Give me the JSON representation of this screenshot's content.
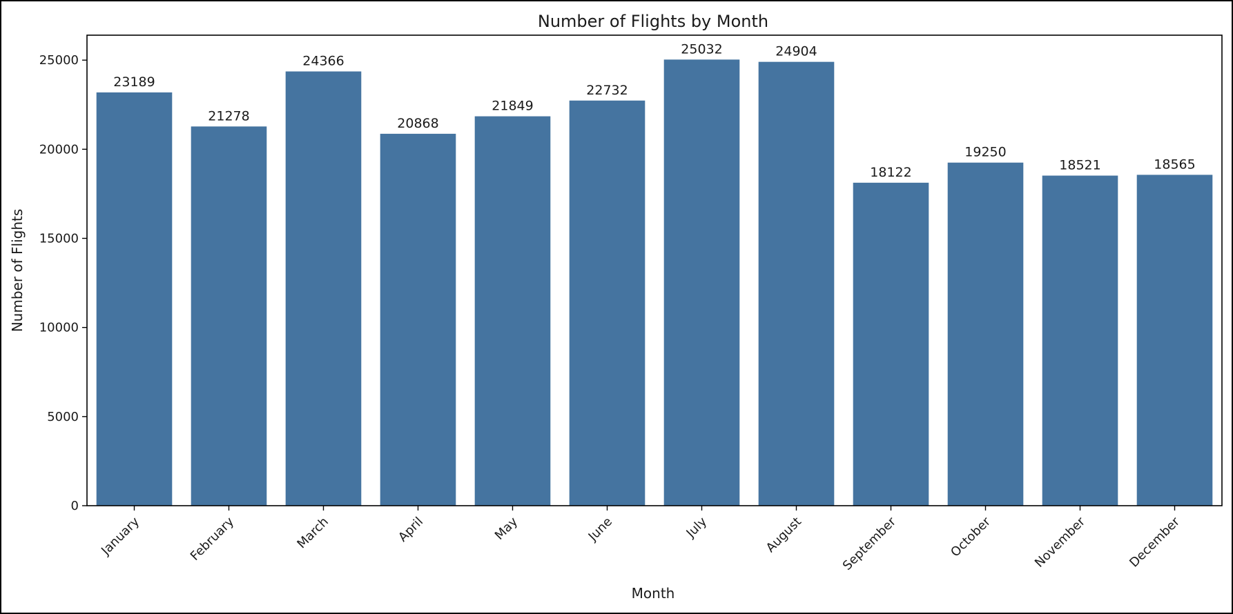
{
  "chart_data": {
    "type": "bar",
    "title": "Number of Flights by Month",
    "xlabel": "Month",
    "ylabel": "Number of Flights",
    "categories": [
      "January",
      "February",
      "March",
      "April",
      "May",
      "June",
      "July",
      "August",
      "September",
      "October",
      "November",
      "December"
    ],
    "values": [
      23189,
      21278,
      24366,
      20868,
      21849,
      22732,
      25032,
      24904,
      18122,
      19250,
      18521,
      18565
    ],
    "data_labels": [
      "23189",
      "21278",
      "24366",
      "20868",
      "21849",
      "22732",
      "25032",
      "24904",
      "18122",
      "19250",
      "18521",
      "18565"
    ],
    "ylim": [
      0,
      26400
    ],
    "yticks": [
      0,
      5000,
      10000,
      15000,
      20000,
      25000
    ],
    "ytick_labels": [
      "0",
      "5000",
      "10000",
      "15000",
      "20000",
      "25000"
    ],
    "grid": false,
    "legend": "none",
    "bar_color": "#4574a0"
  }
}
